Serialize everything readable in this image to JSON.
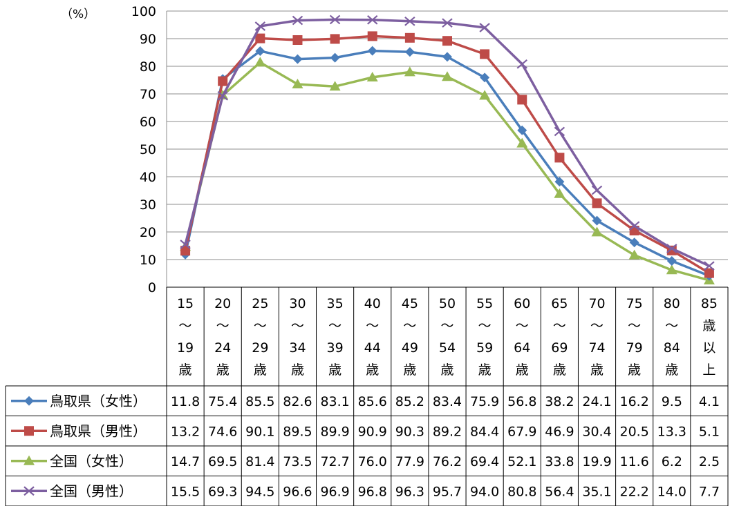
{
  "chart_data": {
    "type": "line",
    "unit_label": "（%）",
    "ylim": [
      0,
      100
    ],
    "yticks": [
      0,
      10,
      20,
      30,
      40,
      50,
      60,
      70,
      80,
      90,
      100
    ],
    "grid": true,
    "legend_placement": "data-table-left",
    "categories": [
      [
        "15",
        "～",
        "19",
        "歳"
      ],
      [
        "20",
        "～",
        "24",
        "歳"
      ],
      [
        "25",
        "～",
        "29",
        "歳"
      ],
      [
        "30",
        "～",
        "34",
        "歳"
      ],
      [
        "35",
        "～",
        "39",
        "歳"
      ],
      [
        "40",
        "～",
        "44",
        "歳"
      ],
      [
        "45",
        "～",
        "49",
        "歳"
      ],
      [
        "50",
        "～",
        "54",
        "歳"
      ],
      [
        "55",
        "～",
        "59",
        "歳"
      ],
      [
        "60",
        "～",
        "64",
        "歳"
      ],
      [
        "65",
        "～",
        "69",
        "歳"
      ],
      [
        "70",
        "～",
        "74",
        "歳"
      ],
      [
        "75",
        "～",
        "79",
        "歳"
      ],
      [
        "80",
        "～",
        "84",
        "歳"
      ],
      [
        "85",
        "歳",
        "以",
        "上"
      ]
    ],
    "series": [
      {
        "name": "鳥取県（女性）",
        "color": "#4a7ebb",
        "marker": "diamond",
        "values": [
          11.8,
          75.4,
          85.5,
          82.6,
          83.1,
          85.6,
          85.2,
          83.4,
          75.9,
          56.8,
          38.2,
          24.1,
          16.2,
          9.5,
          4.1
        ],
        "labels": [
          "11.8",
          "75.4",
          "85.5",
          "82.6",
          "83.1",
          "85.6",
          "85.2",
          "83.4",
          "75.9",
          "56.8",
          "38.2",
          "24.1",
          "16.2",
          "9.5",
          "4.1"
        ]
      },
      {
        "name": "鳥取県（男性）",
        "color": "#be4b48",
        "marker": "square",
        "values": [
          13.2,
          74.6,
          90.1,
          89.5,
          89.9,
          90.9,
          90.3,
          89.2,
          84.4,
          67.9,
          46.9,
          30.4,
          20.5,
          13.3,
          5.1
        ],
        "labels": [
          "13.2",
          "74.6",
          "90.1",
          "89.5",
          "89.9",
          "90.9",
          "90.3",
          "89.2",
          "84.4",
          "67.9",
          "46.9",
          "30.4",
          "20.5",
          "13.3",
          "5.1"
        ]
      },
      {
        "name": "全国（女性）",
        "color": "#98b954",
        "marker": "triangle",
        "values": [
          14.7,
          69.5,
          81.4,
          73.5,
          72.7,
          76.0,
          77.9,
          76.2,
          69.4,
          52.1,
          33.8,
          19.9,
          11.6,
          6.2,
          2.5
        ],
        "labels": [
          "14.7",
          "69.5",
          "81.4",
          "73.5",
          "72.7",
          "76.0",
          "77.9",
          "76.2",
          "69.4",
          "52.1",
          "33.8",
          "19.9",
          "11.6",
          "6.2",
          "2.5"
        ]
      },
      {
        "name": "全国（男性）",
        "color": "#7d5fa0",
        "marker": "x",
        "values": [
          15.5,
          69.3,
          94.5,
          96.6,
          96.9,
          96.8,
          96.3,
          95.7,
          94.0,
          80.8,
          56.4,
          35.1,
          22.2,
          14.0,
          7.7
        ],
        "labels": [
          "15.5",
          "69.3",
          "94.5",
          "96.6",
          "96.9",
          "96.8",
          "96.3",
          "95.7",
          "94.0",
          "80.8",
          "56.4",
          "35.1",
          "22.2",
          "14.0",
          "7.7"
        ]
      }
    ]
  }
}
